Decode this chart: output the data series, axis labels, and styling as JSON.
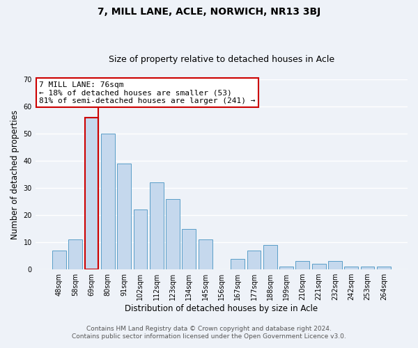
{
  "title": "7, MILL LANE, ACLE, NORWICH, NR13 3BJ",
  "subtitle": "Size of property relative to detached houses in Acle",
  "xlabel": "Distribution of detached houses by size in Acle",
  "ylabel": "Number of detached properties",
  "bar_labels": [
    "48sqm",
    "58sqm",
    "69sqm",
    "80sqm",
    "91sqm",
    "102sqm",
    "112sqm",
    "123sqm",
    "134sqm",
    "145sqm",
    "156sqm",
    "167sqm",
    "177sqm",
    "188sqm",
    "199sqm",
    "210sqm",
    "221sqm",
    "232sqm",
    "242sqm",
    "253sqm",
    "264sqm"
  ],
  "bar_values": [
    7,
    11,
    56,
    50,
    39,
    22,
    32,
    26,
    15,
    11,
    0,
    4,
    7,
    9,
    1,
    3,
    2,
    3,
    1,
    1,
    1
  ],
  "bar_color": "#c5d8ed",
  "bar_edge_color": "#5a9ec8",
  "highlight_bar_index": 2,
  "highlight_edge_color": "#cc0000",
  "vline_color": "#cc0000",
  "annotation_text": "7 MILL LANE: 76sqm\n← 18% of detached houses are smaller (53)\n81% of semi-detached houses are larger (241) →",
  "annotation_box_color": "#ffffff",
  "annotation_box_edge_color": "#cc0000",
  "ylim": [
    0,
    70
  ],
  "yticks": [
    0,
    10,
    20,
    30,
    40,
    50,
    60,
    70
  ],
  "footer_line1": "Contains HM Land Registry data © Crown copyright and database right 2024.",
  "footer_line2": "Contains public sector information licensed under the Open Government Licence v3.0.",
  "background_color": "#eef2f8",
  "plot_background_color": "#eef2f8",
  "grid_color": "#ffffff",
  "title_fontsize": 10,
  "subtitle_fontsize": 9,
  "axis_label_fontsize": 8.5,
  "tick_fontsize": 7,
  "annotation_fontsize": 8,
  "footer_fontsize": 6.5
}
